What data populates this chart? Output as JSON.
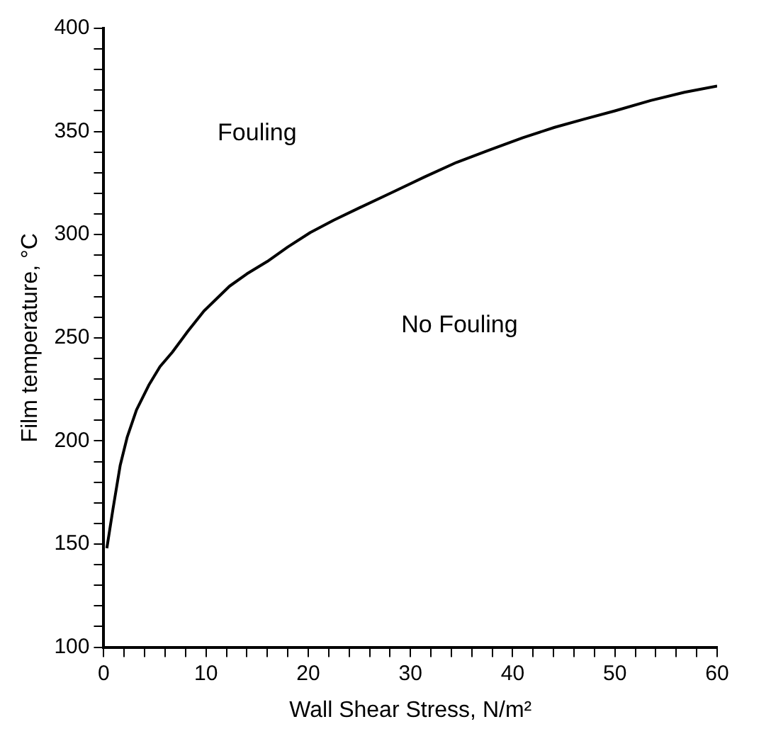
{
  "chart_data": {
    "type": "line",
    "xlabel": "Wall Shear Stress, N/m²",
    "ylabel": "Film temperature, °C",
    "series": [
      {
        "color": "#000000",
        "x": [
          0.3,
          0.9,
          1.6,
          2.3,
          3.2,
          4.4,
          5.5,
          6.7,
          8.2,
          9.8,
          12.3,
          14,
          16,
          18,
          20.2,
          22.5,
          25,
          28,
          31.4,
          34.5,
          37.7,
          41,
          44.1,
          47,
          50,
          53.5,
          56.8,
          60
        ],
        "values": [
          148,
          167,
          188,
          202,
          215,
          227,
          236,
          243,
          253,
          263,
          275,
          281,
          287,
          294,
          301,
          307,
          313,
          320,
          328,
          335,
          341,
          347,
          352,
          356,
          360,
          365,
          369,
          372
        ]
      }
    ],
    "xlim": [
      0,
      60
    ],
    "ylim": [
      100,
      400
    ],
    "xticks": [
      0,
      {
        "value": 2,
        "label": null
      },
      {
        "value": 4,
        "label": null
      },
      {
        "value": 6,
        "label": null
      },
      {
        "value": 8,
        "label": null
      },
      10,
      {
        "value": 12,
        "label": null
      },
      {
        "value": 14,
        "label": null
      },
      {
        "value": 16,
        "label": null
      },
      {
        "value": 18,
        "label": null
      },
      20,
      {
        "value": 22,
        "label": null
      },
      {
        "value": 24,
        "label": null
      },
      {
        "value": 26,
        "label": null
      },
      {
        "value": 28,
        "label": null
      },
      30,
      {
        "value": 32,
        "label": null
      },
      {
        "value": 34,
        "label": null
      },
      {
        "value": 36,
        "label": null
      },
      {
        "value": 38,
        "label": null
      },
      40,
      {
        "value": 42,
        "label": null
      },
      {
        "value": 44,
        "label": null
      },
      {
        "value": 46,
        "label": null
      },
      {
        "value": 48,
        "label": null
      },
      50,
      {
        "value": 52,
        "label": null
      },
      {
        "value": 54,
        "label": null
      },
      {
        "value": 56,
        "label": null
      },
      {
        "value": 58,
        "label": null
      },
      60
    ],
    "yticks": [
      100,
      {
        "value": 110,
        "label": null
      },
      {
        "value": 120,
        "label": null
      },
      {
        "value": 130,
        "label": null
      },
      {
        "value": 140,
        "label": null
      },
      150,
      {
        "value": 160,
        "label": null
      },
      {
        "value": 170,
        "label": null
      },
      {
        "value": 180,
        "label": null
      },
      {
        "value": 190,
        "label": null
      },
      200,
      {
        "value": 210,
        "label": null
      },
      {
        "value": 220,
        "label": null
      },
      {
        "value": 230,
        "label": null
      },
      {
        "value": 240,
        "label": null
      },
      250,
      {
        "value": 260,
        "label": null
      },
      {
        "value": 270,
        "label": null
      },
      {
        "value": 280,
        "label": null
      },
      {
        "value": 290,
        "label": null
      },
      300,
      {
        "value": 310,
        "label": null
      },
      {
        "value": 320,
        "label": null
      },
      {
        "value": 330,
        "label": null
      },
      {
        "value": 340,
        "label": null
      },
      350,
      {
        "value": 360,
        "label": null
      },
      {
        "value": 370,
        "label": null
      },
      {
        "value": 380,
        "label": null
      },
      {
        "value": 390,
        "label": null
      },
      400
    ],
    "annotations": [
      "Fouling",
      "No Fouling"
    ],
    "grid": false,
    "legend": false,
    "marker": "none",
    "line_style": "solid"
  }
}
